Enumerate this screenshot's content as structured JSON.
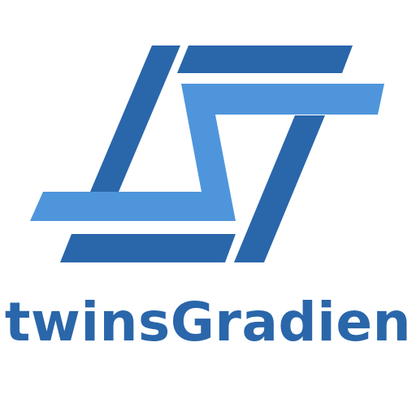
{
  "brand": {
    "name": "twinsGradien",
    "primary_color": "#2a66aa",
    "secondary_color": "#4f95dc",
    "text_color": "#2a66aa"
  },
  "logo": {
    "icon": "twin-s-logo-icon"
  }
}
